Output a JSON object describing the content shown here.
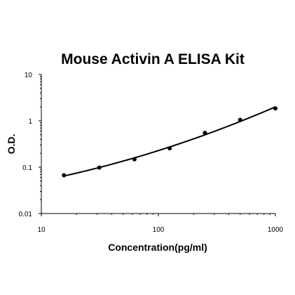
{
  "chart_data": {
    "type": "scatter",
    "title": "Mouse Activin A ELISA Kit",
    "xlabel": "Concentration(pg/ml)",
    "ylabel": "O.D.",
    "x_scale": "log",
    "y_scale": "log",
    "xlim": [
      10,
      1000
    ],
    "ylim": [
      0.01,
      10
    ],
    "x_ticks": [
      "10",
      "100",
      "1000"
    ],
    "y_ticks": [
      "0.01",
      "0.1",
      "1",
      "10"
    ],
    "grid": false,
    "legend": "none",
    "series": [
      {
        "x": [
          15.6,
          31.25,
          62.5,
          125,
          250,
          500,
          1000
        ],
        "y": [
          0.067,
          0.098,
          0.148,
          0.255,
          0.55,
          1.05,
          1.85
        ],
        "marker_color": "#000000",
        "fit_curve": true
      }
    ]
  }
}
